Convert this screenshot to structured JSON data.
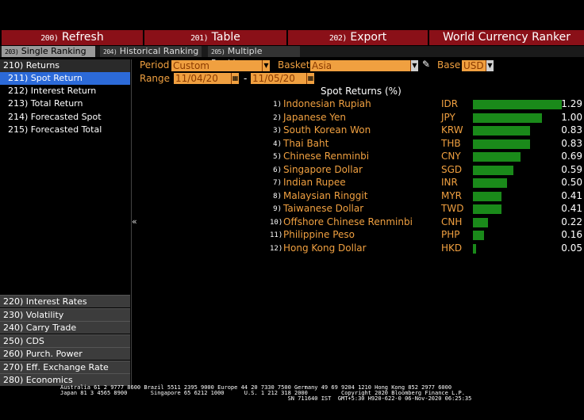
{
  "topbar": {
    "buttons": [
      {
        "num": "200)",
        "label": "Refresh"
      },
      {
        "num": "201)",
        "label": "Table"
      },
      {
        "num": "202)",
        "label": "Export"
      }
    ],
    "title": "World Currency Ranker"
  },
  "tabs": [
    {
      "num": "203)",
      "label": "Single Ranking"
    },
    {
      "num": "204)",
      "label": "Historical Ranking"
    },
    {
      "num": "205)",
      "label": "Multiple Ranking"
    }
  ],
  "sidebar": {
    "top_items": [
      {
        "label": "210) Returns"
      },
      {
        "label": "211) Spot Return"
      },
      {
        "label": "212) Interest Return"
      },
      {
        "label": "213) Total Return"
      },
      {
        "label": "214) Forecasted Spot"
      },
      {
        "label": "215) Forecasted Total"
      }
    ],
    "bottom_items": [
      {
        "label": "220) Interest Rates"
      },
      {
        "label": "230) Volatility"
      },
      {
        "label": "240) Carry Trade"
      },
      {
        "label": "250) CDS"
      },
      {
        "label": "260) Purch. Power"
      },
      {
        "label": "270) Eff. Exchange Rate"
      },
      {
        "label": "280) Economics"
      }
    ],
    "collapse_glyph": "«"
  },
  "controls": {
    "period_label": "Period",
    "period_value": "Custom",
    "basket_label": "Basket",
    "basket_value": "Asia",
    "base_label": "Base",
    "base_value": "USD",
    "range_label": "Range",
    "range_start": "11/04/20",
    "range_sep": "-",
    "range_end": "11/05/20"
  },
  "table_title": "Spot Returns (%)",
  "rows": [
    {
      "rank": "1)",
      "name": "Indonesian Rupiah",
      "code": "IDR",
      "value": "1.29"
    },
    {
      "rank": "2)",
      "name": "Japanese Yen",
      "code": "JPY",
      "value": "1.00"
    },
    {
      "rank": "3)",
      "name": "South Korean Won",
      "code": "KRW",
      "value": "0.83"
    },
    {
      "rank": "4)",
      "name": "Thai Baht",
      "code": "THB",
      "value": "0.83"
    },
    {
      "rank": "5)",
      "name": "Chinese Renminbi",
      "code": "CNY",
      "value": "0.69"
    },
    {
      "rank": "6)",
      "name": "Singapore Dollar",
      "code": "SGD",
      "value": "0.59"
    },
    {
      "rank": "7)",
      "name": "Indian Rupee",
      "code": "INR",
      "value": "0.50"
    },
    {
      "rank": "8)",
      "name": "Malaysian Ringgit",
      "code": "MYR",
      "value": "0.41"
    },
    {
      "rank": "9)",
      "name": "Taiwanese Dollar",
      "code": "TWD",
      "value": "0.41"
    },
    {
      "rank": "10)",
      "name": "Offshore Chinese Renminbi",
      "code": "CNH",
      "value": "0.22"
    },
    {
      "rank": "11)",
      "name": "Philippine Peso",
      "code": "PHP",
      "value": "0.16"
    },
    {
      "rank": "12)",
      "name": "Hong Kong Dollar",
      "code": "HKD",
      "value": "0.05"
    }
  ],
  "footer": {
    "line1": "Australia 61 2 9777 8600 Brazil 5511 2395 9000 Europe 44 20 7330 7500 Germany 49 69 9204 1210 Hong Kong 852 2977 6000",
    "line2": "Japan 81 3 4565 8900       Singapore 65 6212 1000      U.S. 1 212 318 2000          Copyright 2020 Bloomberg Finance L.P.",
    "line3": "                                                                    SN 711640 IST  GMT+5:30 H920-622-0 06-Nov-2020 06:25:35"
  },
  "colors": {
    "accent": "#f0a040",
    "bar": "#1a8a1a",
    "topbar": "#8a1018",
    "selected": "#2c6ad8"
  }
}
